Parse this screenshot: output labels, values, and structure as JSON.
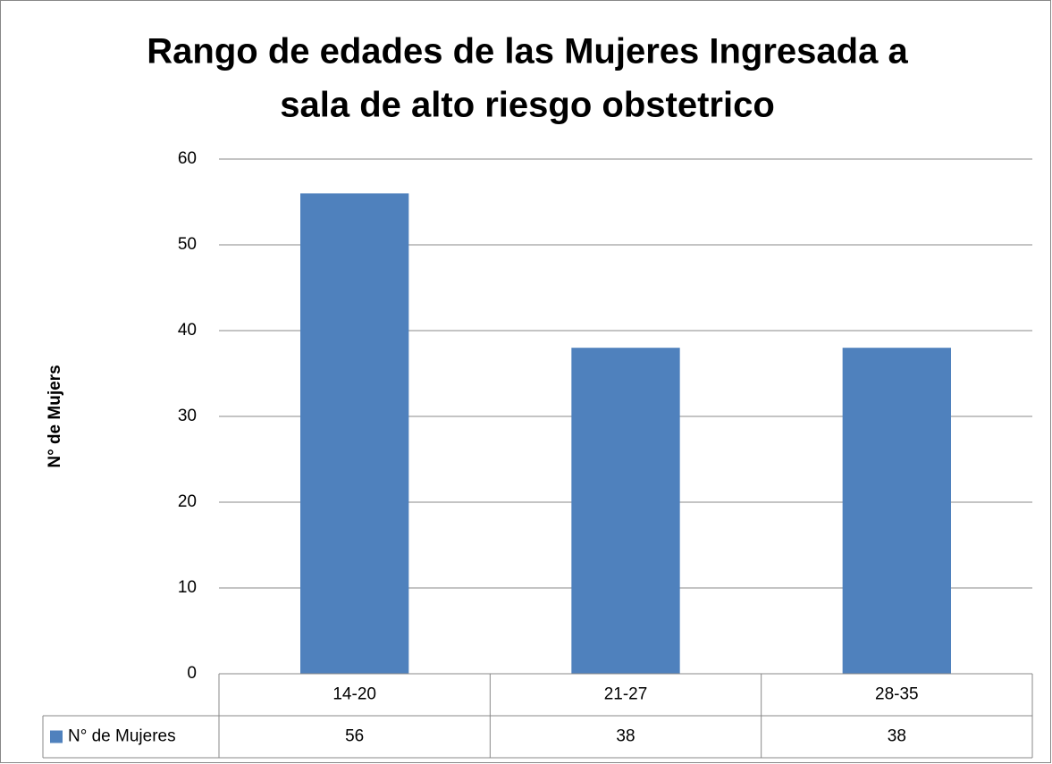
{
  "chart_data": {
    "type": "bar",
    "title": [
      "Rango de edades de las Mujeres Ingresada a",
      "sala de alto riesgo obstetrico"
    ],
    "ylabel": "N° de Mujers",
    "categories": [
      "14-20",
      "21-27",
      "28-35"
    ],
    "series": [
      {
        "name": "N° de Mujeres",
        "color": "#4f81bd",
        "values": [
          56,
          38,
          38
        ]
      }
    ],
    "ylim": [
      0,
      60
    ],
    "yticks": [
      0,
      10,
      20,
      30,
      40,
      50,
      60
    ],
    "grid": true,
    "data_table": true
  }
}
